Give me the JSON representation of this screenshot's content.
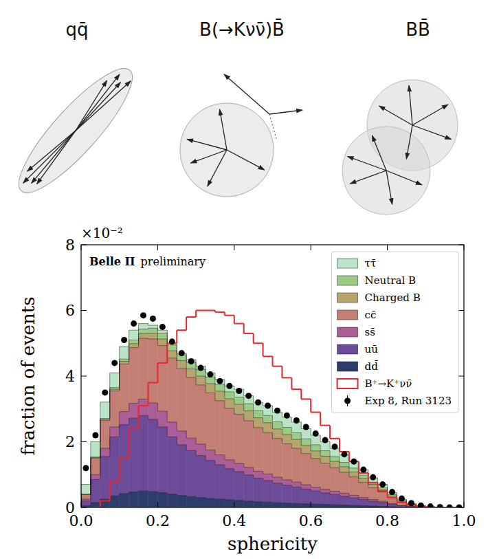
{
  "diagram": {
    "labels": [
      "qq̄",
      "B(→Kνν̄)B̄",
      "BB̄"
    ]
  },
  "chart_data": {
    "type": "histogram",
    "title": "Belle II",
    "subtitle": "preliminary",
    "x_label": "sphericity",
    "y_label": "fraction of events",
    "y_multiplier": "×10⁻²",
    "bins": [
      0,
      0.025,
      0.05,
      0.075,
      0.1,
      0.125,
      0.15,
      0.175,
      0.2,
      0.225,
      0.25,
      0.275,
      0.3,
      0.325,
      0.35,
      0.375,
      0.4,
      0.425,
      0.45,
      0.475,
      0.5,
      0.525,
      0.55,
      0.575,
      0.6,
      0.625,
      0.65,
      0.675,
      0.7,
      0.725,
      0.75,
      0.775,
      0.8,
      0.825,
      0.85,
      0.875,
      0.9,
      0.925,
      0.95,
      0.975,
      1
    ],
    "xlim": [
      0,
      1
    ],
    "xticks": [
      {
        "value": 0,
        "label": "0.0"
      },
      {
        "value": 0.2,
        "label": "0.2"
      },
      {
        "value": 0.4,
        "label": "0.4"
      },
      {
        "value": 0.6,
        "label": "0.6"
      },
      {
        "value": 0.8,
        "label": "0.8"
      },
      {
        "value": 1,
        "label": "1.0"
      }
    ],
    "ylim": [
      0,
      8
    ],
    "yticks": [
      0,
      2,
      4,
      6,
      8
    ],
    "stacked": true,
    "grid": false,
    "legend": "upper right",
    "series": [
      {
        "name": "ττ̄",
        "type": "bar",
        "color": "#b9e4c6",
        "values": [
          0.3,
          0.46,
          0.5,
          0.45,
          0.38,
          0.3,
          0.17,
          0.09,
          0.09,
          0.05,
          0.05,
          0.08,
          0.1,
          0.13,
          0.15,
          0.18,
          0.24,
          0.24,
          0.25,
          0.3,
          0.29,
          0.31,
          0.32,
          0.31,
          0.29,
          0.27,
          0.25,
          0.23,
          0.2,
          0.17,
          0.13,
          0.1,
          0.06,
          0.04,
          0.02,
          0.01,
          0.01,
          0.01,
          0,
          0
        ]
      },
      {
        "name": "Neutral B",
        "type": "bar",
        "color": "#9ccb85",
        "values": [
          0,
          0.02,
          0.03,
          0.05,
          0.07,
          0.11,
          0.13,
          0.15,
          0.18,
          0.18,
          0.18,
          0.2,
          0.2,
          0.2,
          0.21,
          0.21,
          0.22,
          0.22,
          0.22,
          0.22,
          0.22,
          0.22,
          0.21,
          0.2,
          0.19,
          0.17,
          0.15,
          0.13,
          0.12,
          0.1,
          0.07,
          0.06,
          0.04,
          0.02,
          0.01,
          0,
          0,
          0,
          0,
          0
        ]
      },
      {
        "name": "Charged B",
        "type": "bar",
        "color": "#b5a46e",
        "values": [
          0,
          0.02,
          0.03,
          0.05,
          0.08,
          0.12,
          0.15,
          0.18,
          0.2,
          0.22,
          0.24,
          0.26,
          0.27,
          0.28,
          0.29,
          0.29,
          0.3,
          0.3,
          0.3,
          0.3,
          0.29,
          0.28,
          0.27,
          0.25,
          0.23,
          0.21,
          0.19,
          0.17,
          0.15,
          0.12,
          0.1,
          0.07,
          0.05,
          0.03,
          0.01,
          0.01,
          0,
          0,
          0,
          0
        ]
      },
      {
        "name": "cc̄",
        "type": "bar",
        "color": "#c47f75",
        "values": [
          0.15,
          0.5,
          0.85,
          1.1,
          1.45,
          1.7,
          1.85,
          1.95,
          2.0,
          1.95,
          1.9,
          1.85,
          1.8,
          1.74,
          1.65,
          1.57,
          1.5,
          1.42,
          1.33,
          1.26,
          1.18,
          1.1,
          1.03,
          0.95,
          0.87,
          0.8,
          0.72,
          0.64,
          0.56,
          0.46,
          0.36,
          0.28,
          0.18,
          0.1,
          0.05,
          0.02,
          0.01,
          0,
          0,
          0
        ]
      },
      {
        "name": "ss̄",
        "type": "bar",
        "color": "#ab5d97",
        "values": [
          0.05,
          0.15,
          0.25,
          0.3,
          0.4,
          0.45,
          0.5,
          0.5,
          0.48,
          0.45,
          0.42,
          0.38,
          0.35,
          0.32,
          0.3,
          0.27,
          0.25,
          0.23,
          0.21,
          0.2,
          0.18,
          0.16,
          0.15,
          0.13,
          0.12,
          0.11,
          0.1,
          0.09,
          0.08,
          0.06,
          0.05,
          0.04,
          0.02,
          0.01,
          0.01,
          0,
          0,
          0,
          0,
          0
        ]
      },
      {
        "name": "uū",
        "type": "bar",
        "color": "#6c4b98",
        "values": [
          0.15,
          0.7,
          1.3,
          1.8,
          2.1,
          2.25,
          2.3,
          2.2,
          2.0,
          1.75,
          1.55,
          1.4,
          1.28,
          1.16,
          1.05,
          0.95,
          0.88,
          0.8,
          0.72,
          0.66,
          0.6,
          0.55,
          0.5,
          0.45,
          0.4,
          0.35,
          0.31,
          0.27,
          0.23,
          0.19,
          0.15,
          0.12,
          0.08,
          0.04,
          0.02,
          0.01,
          0,
          0,
          0,
          0
        ]
      },
      {
        "name": "dd̄",
        "type": "bar",
        "color": "#2c3d6c",
        "values": [
          0.05,
          0.15,
          0.25,
          0.35,
          0.42,
          0.47,
          0.5,
          0.48,
          0.45,
          0.4,
          0.36,
          0.33,
          0.3,
          0.27,
          0.25,
          0.23,
          0.21,
          0.19,
          0.17,
          0.16,
          0.14,
          0.13,
          0.12,
          0.11,
          0.1,
          0.09,
          0.08,
          0.07,
          0.06,
          0.05,
          0.04,
          0.03,
          0.02,
          0.01,
          0,
          0,
          0,
          0,
          0,
          0
        ]
      },
      {
        "name": "B⁺→K⁺νν̄",
        "type": "step",
        "color": "#e8262b",
        "values": [
          0,
          0,
          0.2,
          0.8,
          1.5,
          2.4,
          3.1,
          3.8,
          4.4,
          5.0,
          5.4,
          5.8,
          6.0,
          6.0,
          5.95,
          5.85,
          5.6,
          5.3,
          5.0,
          4.6,
          4.3,
          3.95,
          3.6,
          3.3,
          2.9,
          2.5,
          2.1,
          1.7,
          1.4,
          1.05,
          0.75,
          0.5,
          0.3,
          0.15,
          0.07,
          0.03,
          0.01,
          0,
          0,
          0
        ]
      },
      {
        "name": "Exp 8, Run 3123",
        "type": "scatter",
        "marker": "circle",
        "color": "#000000",
        "values": [
          1.2,
          2.2,
          3.5,
          4.4,
          5.1,
          5.6,
          5.85,
          5.75,
          5.5,
          5.05,
          4.7,
          4.45,
          4.25,
          4.05,
          3.85,
          3.7,
          3.55,
          3.4,
          3.2,
          3.1,
          2.95,
          2.8,
          2.65,
          2.45,
          2.25,
          2.05,
          1.85,
          1.62,
          1.4,
          1.15,
          0.92,
          0.7,
          0.47,
          0.27,
          0.13,
          0.06,
          0.03,
          0.01,
          0,
          0
        ]
      }
    ]
  }
}
